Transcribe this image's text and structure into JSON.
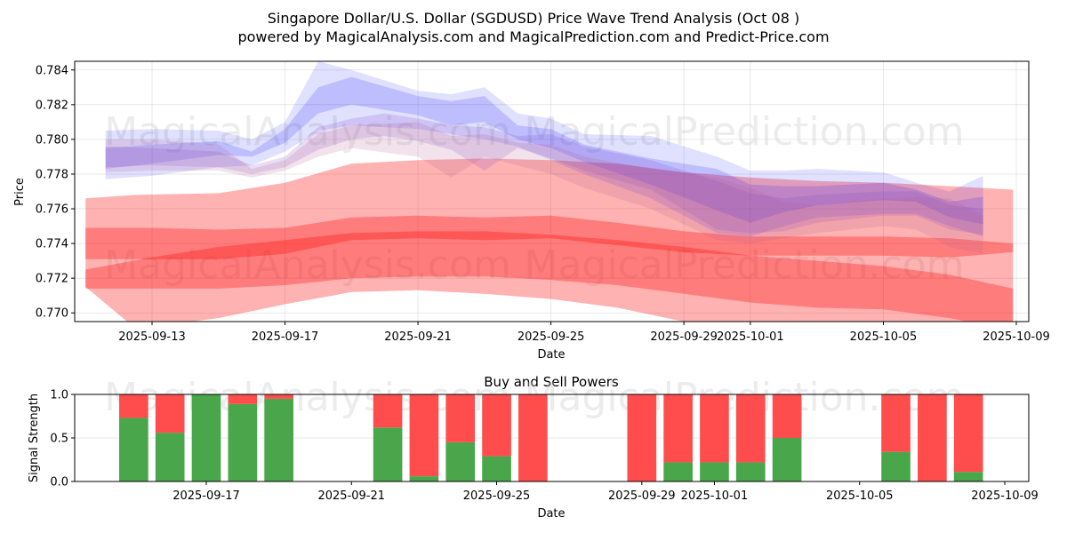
{
  "chart_data": [
    {
      "type": "area",
      "title": "Singapore Dollar/U.S. Dollar (SGDUSD) Price Wave Trend Analysis (Oct 08 )",
      "subtitle": "powered by MagicalAnalysis.com and MagicalPrediction.com and Predict-Price.com",
      "xlabel": "Date",
      "ylabel": "Price",
      "ylim": [
        0.7695,
        0.7845
      ],
      "xlim": [
        "2025-09-10.67",
        "2025-10-09.4"
      ],
      "grid": true,
      "y_ticks": [
        "0.770",
        "0.772",
        "0.774",
        "0.776",
        "0.778",
        "0.780",
        "0.782",
        "0.784"
      ],
      "x_ticks": [
        "2025-09-13",
        "2025-09-17",
        "2025-09-21",
        "2025-09-25",
        "2025-09-29",
        "2025-10-01",
        "2025-10-05",
        "2025-10-09"
      ],
      "watermarks": [
        "MagicalAnalysis.com",
        "MagicalPrediction.com",
        "MagicalAnalysis.com",
        "MagicalPrediction.com"
      ],
      "red_bands": [
        {
          "name": "long-term wave outer",
          "color": "#ff0000",
          "opacity": 0.3,
          "x": [
            -2.0,
            -0.5,
            2,
            4,
            6,
            8,
            10,
            12,
            14,
            16,
            18,
            20,
            22,
            24,
            25.9
          ],
          "upper": [
            0.7766,
            0.7768,
            0.7769,
            0.7775,
            0.7786,
            0.7788,
            0.7789,
            0.7788,
            0.7786,
            0.7781,
            0.7778,
            0.7776,
            0.7775,
            0.7773,
            0.7771
          ],
          "lower": [
            0.7715,
            0.7691,
            0.7697,
            0.7705,
            0.7712,
            0.7713,
            0.7711,
            0.7708,
            0.7703,
            0.7695,
            0.7693,
            0.769,
            0.7686,
            0.768,
            0.7678
          ]
        },
        {
          "name": "mid wave",
          "color": "#ff0000",
          "opacity": 0.3,
          "x": [
            -2.0,
            0,
            2,
            4,
            6,
            8,
            10,
            12,
            14,
            16,
            18,
            20,
            22,
            24,
            25.9
          ],
          "upper": [
            0.7749,
            0.7749,
            0.7748,
            0.7749,
            0.7755,
            0.7756,
            0.7755,
            0.7756,
            0.7752,
            0.7747,
            0.7744,
            0.7744,
            0.7744,
            0.7743,
            0.774
          ],
          "lower": [
            0.7731,
            0.7731,
            0.7731,
            0.7734,
            0.7742,
            0.7743,
            0.7742,
            0.7743,
            0.7739,
            0.7735,
            0.7733,
            0.7733,
            0.7733,
            0.7732,
            0.7735
          ]
        },
        {
          "name": "trend wave",
          "color": "#ff0000",
          "opacity": 0.3,
          "x": [
            -2.0,
            0,
            2,
            4,
            6,
            8,
            10,
            12,
            14,
            16,
            18,
            20,
            22,
            24,
            25.9
          ],
          "upper": [
            0.7725,
            0.7732,
            0.7738,
            0.7742,
            0.7746,
            0.7747,
            0.7747,
            0.7745,
            0.7742,
            0.7738,
            0.7733,
            0.773,
            0.7727,
            0.7722,
            0.7714
          ],
          "lower": [
            0.7714,
            0.7714,
            0.7714,
            0.7716,
            0.772,
            0.7721,
            0.7721,
            0.7719,
            0.7716,
            0.7711,
            0.7706,
            0.7703,
            0.7702,
            0.7697,
            0.769
          ]
        }
      ],
      "blue_bands": [
        {
          "name": "short wave 1",
          "color": "#0000ff",
          "opacity": 0.12,
          "x": [
            -1.4,
            0,
            2,
            3,
            4,
            5,
            6,
            8,
            9,
            10,
            11,
            12,
            13,
            15,
            17,
            18,
            19,
            20,
            22,
            23,
            24,
            25
          ],
          "upper": [
            0.7805,
            0.7806,
            0.7805,
            0.78,
            0.781,
            0.7845,
            0.784,
            0.7828,
            0.7826,
            0.783,
            0.7815,
            0.7812,
            0.7803,
            0.7802,
            0.779,
            0.7782,
            0.7782,
            0.7783,
            0.7781,
            0.7775,
            0.777,
            0.7779
          ],
          "lower": [
            0.7777,
            0.7779,
            0.7784,
            0.7785,
            0.7793,
            0.7805,
            0.7808,
            0.7806,
            0.7803,
            0.78,
            0.7796,
            0.7788,
            0.778,
            0.7766,
            0.7746,
            0.7744,
            0.775,
            0.7755,
            0.7757,
            0.7757,
            0.775,
            0.7744
          ]
        },
        {
          "name": "short wave 2",
          "color": "#0000ff",
          "opacity": 0.15,
          "x": [
            -1.4,
            0,
            2,
            3,
            4,
            5,
            6,
            8,
            9,
            10,
            11,
            12,
            13,
            15,
            17,
            18,
            19,
            20,
            22,
            23,
            24,
            25
          ],
          "upper": [
            0.7795,
            0.7797,
            0.7799,
            0.7793,
            0.7806,
            0.783,
            0.7836,
            0.7825,
            0.7822,
            0.7825,
            0.7808,
            0.7806,
            0.7797,
            0.7789,
            0.7783,
            0.7774,
            0.7773,
            0.7773,
            0.7775,
            0.7771,
            0.7764,
            0.7767
          ],
          "lower": [
            0.7783,
            0.7786,
            0.7791,
            0.779,
            0.7798,
            0.7815,
            0.782,
            0.7814,
            0.7808,
            0.781,
            0.78,
            0.7795,
            0.7787,
            0.7774,
            0.7759,
            0.7752,
            0.7758,
            0.7762,
            0.7765,
            0.7764,
            0.7755,
            0.7751
          ]
        },
        {
          "name": "purple wave 1",
          "color": "#8040c0",
          "opacity": 0.18,
          "x": [
            -1.4,
            0,
            2,
            3,
            4,
            5,
            6,
            7,
            8,
            9,
            10,
            11,
            12,
            13,
            15,
            17,
            18,
            19,
            20,
            22,
            23,
            24,
            25
          ],
          "upper": [
            0.7796,
            0.7795,
            0.7793,
            0.7785,
            0.779,
            0.7807,
            0.7812,
            0.7815,
            0.7812,
            0.7808,
            0.7807,
            0.7802,
            0.7803,
            0.7796,
            0.7788,
            0.7776,
            0.7769,
            0.7766,
            0.7768,
            0.777,
            0.777,
            0.7762,
            0.776
          ],
          "lower": [
            0.7784,
            0.7785,
            0.7784,
            0.778,
            0.7784,
            0.7794,
            0.78,
            0.7802,
            0.7799,
            0.7794,
            0.7782,
            0.7795,
            0.7789,
            0.7782,
            0.7771,
            0.7748,
            0.7746,
            0.7747,
            0.7752,
            0.7756,
            0.7756,
            0.7748,
            0.7745
          ]
        },
        {
          "name": "purple wave 2",
          "color": "#b06090",
          "opacity": 0.18,
          "x": [
            -1.4,
            0,
            2,
            3,
            4,
            5,
            6,
            8,
            9,
            10,
            11,
            12,
            13,
            15,
            17,
            18,
            19,
            20,
            22,
            23,
            24,
            25
          ],
          "upper": [
            0.78,
            0.78,
            0.7797,
            0.7783,
            0.7788,
            0.7803,
            0.7808,
            0.781,
            0.7802,
            0.7803,
            0.7798,
            0.7797,
            0.779,
            0.7783,
            0.7778,
            0.7772,
            0.7764,
            0.7762,
            0.7766,
            0.7767,
            0.7766,
            0.7756,
            0.7753
          ],
          "lower": [
            0.7781,
            0.7782,
            0.7782,
            0.7778,
            0.7782,
            0.779,
            0.7795,
            0.779,
            0.7778,
            0.779,
            0.7785,
            0.778,
            0.7772,
            0.776,
            0.7742,
            0.774,
            0.7743,
            0.7746,
            0.775,
            0.7748,
            0.7738,
            0.7734
          ]
        }
      ]
    },
    {
      "type": "bar",
      "title": "Buy and Sell Powers",
      "xlabel": "Date",
      "ylabel": "Signal Strength",
      "ylim": [
        0.0,
        1.0
      ],
      "y_ticks": [
        "0.0",
        "0.5",
        "1.0"
      ],
      "x_ticks": [
        "2025-09-17",
        "2025-09-21",
        "2025-09-25",
        "2025-09-29",
        "2025-10-01",
        "2025-10-05",
        "2025-10-09"
      ],
      "grid": true,
      "buy_color": "#4aa64a",
      "sell_color": "#ff4d4d",
      "categories": [
        "2025-09-15",
        "2025-09-16",
        "2025-09-17",
        "2025-09-18",
        "2025-09-19",
        "2025-09-22",
        "2025-09-23",
        "2025-09-24",
        "2025-09-25",
        "2025-09-26",
        "2025-09-29",
        "2025-09-30",
        "2025-10-01",
        "2025-10-02",
        "2025-10-03",
        "2025-10-06",
        "2025-10-07",
        "2025-10-08"
      ],
      "series": [
        {
          "name": "Buy",
          "values": [
            0.73,
            0.56,
            1.0,
            0.89,
            0.95,
            0.62,
            0.06,
            0.45,
            0.29,
            0.0,
            0.0,
            0.22,
            0.22,
            0.22,
            0.5,
            0.34,
            0.0,
            0.11
          ]
        },
        {
          "name": "Sell",
          "values": [
            0.27,
            0.44,
            0.0,
            0.11,
            0.05,
            0.38,
            0.94,
            0.55,
            0.71,
            1.0,
            1.0,
            0.78,
            0.78,
            0.78,
            0.5,
            0.66,
            1.0,
            0.89
          ]
        }
      ],
      "watermarks": [
        "MagicalAnalysis.com",
        "MagicalPrediction.com"
      ]
    }
  ]
}
